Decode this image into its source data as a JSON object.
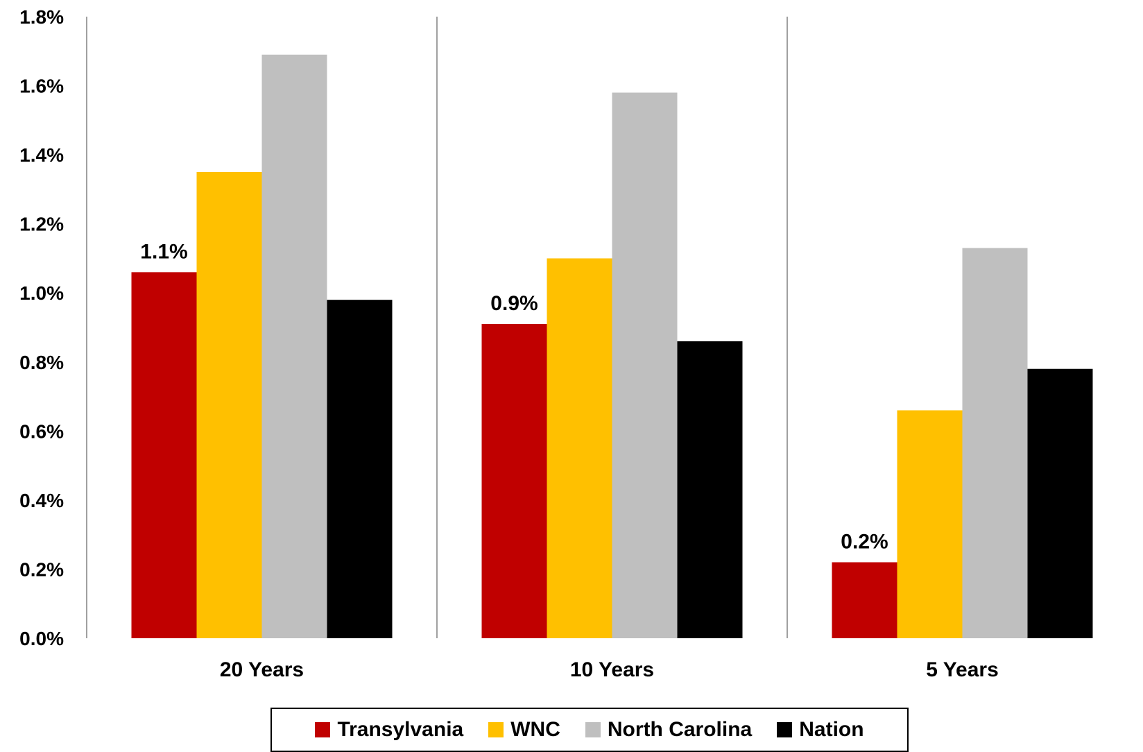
{
  "chart_data": {
    "type": "bar",
    "title": "",
    "xlabel": "",
    "ylabel": "",
    "ylim": [
      0,
      0.018
    ],
    "y_ticks": [
      "0.0%",
      "0.2%",
      "0.4%",
      "0.6%",
      "0.8%",
      "1.0%",
      "1.2%",
      "1.4%",
      "1.6%",
      "1.8%"
    ],
    "y_tick_values": [
      0,
      0.002,
      0.004,
      0.006,
      0.008,
      0.01,
      0.012,
      0.014,
      0.016,
      0.018
    ],
    "categories": [
      "20 Years",
      "10 Years",
      "5 Years"
    ],
    "series": [
      {
        "name": "Transylvania",
        "color": "#c00000",
        "values": [
          0.0106,
          0.0091,
          0.0022
        ],
        "data_labels": [
          "1.1%",
          "0.9%",
          "0.2%"
        ]
      },
      {
        "name": "WNC",
        "color": "#ffc000",
        "values": [
          0.0135,
          0.011,
          0.0066
        ]
      },
      {
        "name": "North Carolina",
        "color": "#bfbfbf",
        "values": [
          0.0169,
          0.0158,
          0.0113
        ]
      },
      {
        "name": "Nation",
        "color": "#000000",
        "values": [
          0.0098,
          0.0086,
          0.0078
        ]
      }
    ],
    "grid": false,
    "category_separators": true,
    "legend_position": "bottom"
  }
}
